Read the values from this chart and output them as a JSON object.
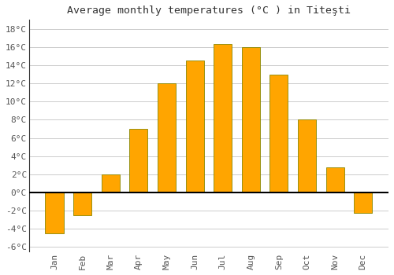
{
  "title": "Average monthly temperatures (°C ) in Titeşti",
  "months": [
    "Jan",
    "Feb",
    "Mar",
    "Apr",
    "May",
    "Jun",
    "Jul",
    "Aug",
    "Sep",
    "Oct",
    "Nov",
    "Dec"
  ],
  "values": [
    -4.5,
    -2.5,
    2.0,
    7.0,
    12.0,
    14.5,
    16.3,
    16.0,
    13.0,
    8.0,
    2.8,
    -2.3
  ],
  "bar_color": "#FFA500",
  "bar_edge_color": "#888800",
  "ylim": [
    -6.5,
    19
  ],
  "yticks": [
    -6,
    -4,
    -2,
    0,
    2,
    4,
    6,
    8,
    10,
    12,
    14,
    16,
    18
  ],
  "ytick_labels": [
    "-6°C",
    "-4°C",
    "-2°C",
    "0°C",
    "2°C",
    "4°C",
    "6°C",
    "8°C",
    "10°C",
    "12°C",
    "14°C",
    "16°C",
    "18°C"
  ],
  "background_color": "#ffffff",
  "plot_bg_color": "#ffffff",
  "grid_color": "#cccccc",
  "title_fontsize": 9.5,
  "tick_fontsize": 8,
  "bar_width": 0.65
}
